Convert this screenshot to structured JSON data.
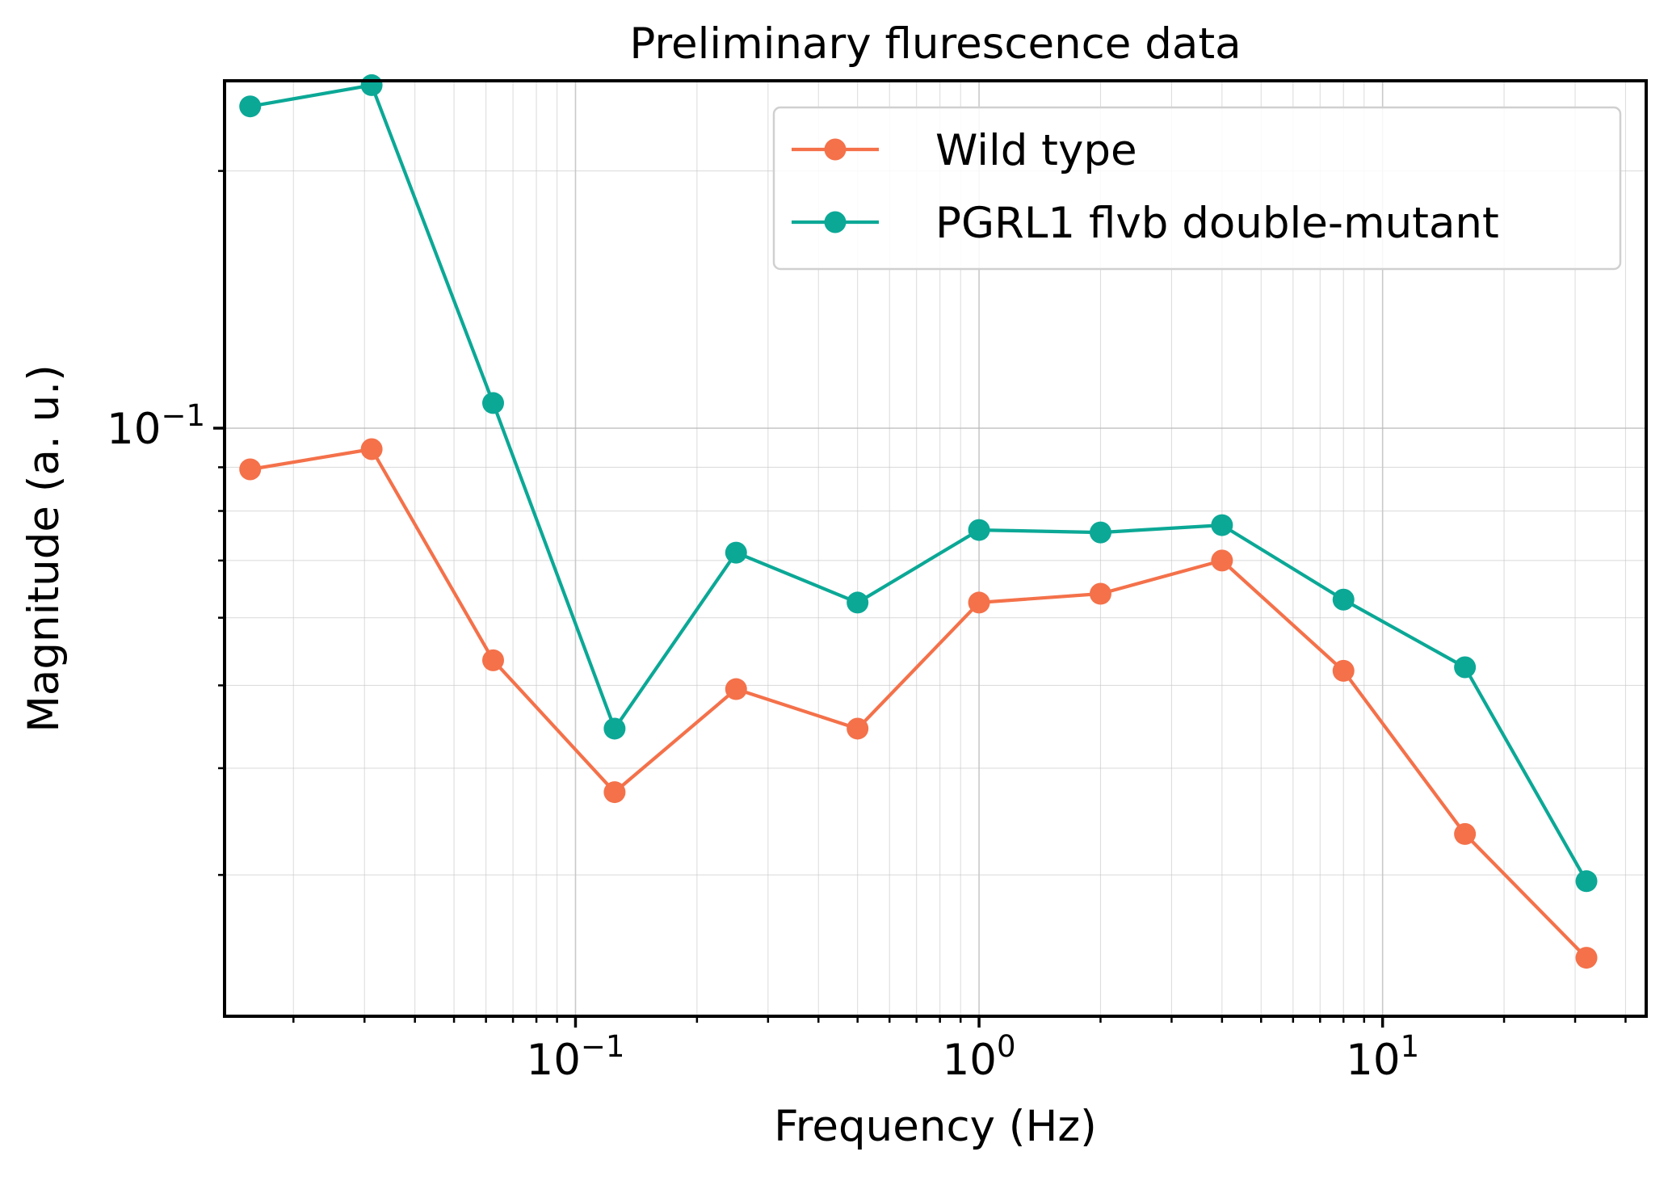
{
  "chart_data": {
    "type": "line",
    "title": "Preliminary flurescence data",
    "xlabel": "Frequency (Hz)",
    "ylabel": "Magnitude (a. u.)",
    "xscale": "log",
    "yscale": "log",
    "xlim": [
      0.0135,
      45
    ],
    "ylim": [
      0.0205,
      0.255
    ],
    "x_ticks": [
      {
        "value": 0.1,
        "base": "10",
        "exp": "−1"
      },
      {
        "value": 1,
        "base": "10",
        "exp": "0"
      },
      {
        "value": 10,
        "base": "10",
        "exp": "1"
      }
    ],
    "y_ticks": [
      {
        "value": 0.1,
        "base": "10",
        "exp": "−1"
      }
    ],
    "grid": true,
    "legend": "top-right",
    "x": [
      0.015625,
      0.03125,
      0.0625,
      0.125,
      0.25,
      0.5,
      1,
      2,
      4,
      8,
      16,
      32
    ],
    "series": [
      {
        "name": "Wild type",
        "color": "#f4714a",
        "values": [
          0.0895,
          0.0945,
          0.0535,
          0.0375,
          0.0495,
          0.0445,
          0.0625,
          0.064,
          0.07,
          0.052,
          0.0335,
          0.024
        ]
      },
      {
        "name": "PGRL1 flvb double-mutant",
        "color": "#0ba896",
        "values": [
          0.238,
          0.252,
          0.107,
          0.0445,
          0.0715,
          0.0625,
          0.076,
          0.0755,
          0.077,
          0.063,
          0.0525,
          0.0295
        ]
      }
    ]
  }
}
